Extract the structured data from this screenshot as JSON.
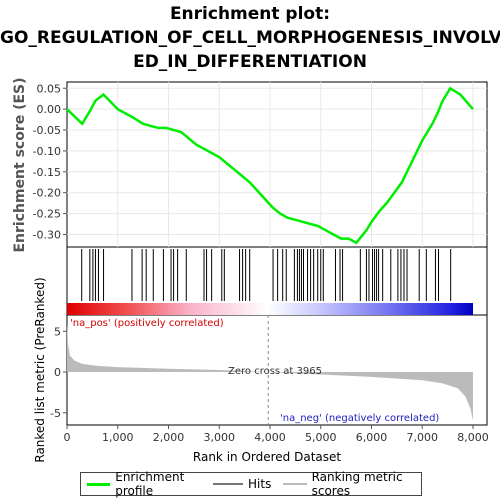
{
  "title_lines": [
    "Enrichment plot:",
    "GO_REGULATION_OF_CELL_MORPHOGENESIS_INVOLV",
    "ED_IN_DIFFERENTIATION"
  ],
  "colors": {
    "enrichment": "#00ee00",
    "hits": "#777777",
    "ranking": "#bbbbbb",
    "pos_label": "#d60000",
    "neg_label": "#2020c0"
  },
  "legend": [
    {
      "label": "Enrichment profile",
      "color": "#00ee00",
      "icon": "line-swatch"
    },
    {
      "label": "Hits",
      "color": "#777777",
      "icon": "line-swatch"
    },
    {
      "label": "Ranking metric scores",
      "color": "#bbbbbb",
      "icon": "line-swatch"
    }
  ],
  "chart_data": [
    {
      "type": "line",
      "ylabel": "Enrichment score (ES)",
      "xlim": [
        0,
        8000
      ],
      "ylim": [
        -0.33,
        0.065
      ],
      "yticks": [
        "0.05",
        "0.00",
        "-0.05",
        "-0.10",
        "-0.15",
        "-0.20",
        "-0.25",
        "-0.30"
      ],
      "ytick_values": [
        0.05,
        0.0,
        -0.05,
        -0.1,
        -0.15,
        -0.2,
        -0.25,
        -0.3
      ],
      "grid": true,
      "series": [
        {
          "x": [
            0,
            300,
            450,
            560,
            720,
            1000,
            1300,
            1500,
            1650,
            1800,
            1950,
            2100,
            2250,
            2400,
            2550,
            2700,
            2850,
            3000,
            3150,
            3300,
            3450,
            3600,
            3750,
            3900,
            4050,
            4200,
            4350,
            4500,
            4650,
            4800,
            4950,
            5100,
            5250,
            5400,
            5550,
            5700,
            5800,
            5900,
            6000,
            6150,
            6300,
            6450,
            6600,
            6700,
            6800,
            6900,
            7000,
            7100,
            7200,
            7300,
            7400,
            7550,
            7750,
            8000
          ],
          "y": [
            0.0,
            -0.035,
            -0.005,
            0.02,
            0.035,
            0.0,
            -0.02,
            -0.035,
            -0.04,
            -0.045,
            -0.045,
            -0.05,
            -0.055,
            -0.07,
            -0.085,
            -0.095,
            -0.105,
            -0.115,
            -0.13,
            -0.145,
            -0.16,
            -0.175,
            -0.195,
            -0.215,
            -0.235,
            -0.25,
            -0.26,
            -0.265,
            -0.27,
            -0.275,
            -0.28,
            -0.29,
            -0.3,
            -0.31,
            -0.31,
            -0.32,
            -0.305,
            -0.29,
            -0.27,
            -0.245,
            -0.225,
            -0.2,
            -0.175,
            -0.15,
            -0.125,
            -0.1,
            -0.075,
            -0.055,
            -0.035,
            -0.01,
            0.02,
            0.05,
            0.035,
            0.0
          ]
        }
      ]
    },
    {
      "type": "bar",
      "name": "hits",
      "x": [
        290,
        450,
        510,
        560,
        620,
        720,
        1280,
        1480,
        1560,
        1700,
        1900,
        2050,
        2100,
        2180,
        2350,
        2700,
        2750,
        2850,
        3050,
        3100,
        3400,
        3460,
        3520,
        3600,
        4060,
        4150,
        4250,
        4320,
        4480,
        4540,
        4580,
        4620,
        4660,
        4740,
        4800,
        4860,
        4940,
        5000,
        5050,
        5290,
        5380,
        5430,
        5780,
        5900,
        5950,
        6020,
        6060,
        6100,
        6140,
        6220,
        6380,
        6520,
        6580,
        6640,
        6700,
        6940,
        7080,
        7260,
        7320,
        7560
      ]
    },
    {
      "type": "area",
      "ylabel": "Ranked list metric (PreRanked)",
      "xlabel": "Rank in Ordered Dataset",
      "xlim": [
        0,
        8000
      ],
      "ylim": [
        -6.5,
        7
      ],
      "yticks": [
        "5",
        "0",
        "-5"
      ],
      "ytick_values": [
        5,
        0,
        -5
      ],
      "xticks": [
        "0",
        "1,000",
        "2,000",
        "3,000",
        "4,000",
        "5,000",
        "6,000",
        "7,000",
        "8,000"
      ],
      "xtick_values": [
        0,
        1000,
        2000,
        3000,
        4000,
        5000,
        6000,
        7000,
        8000
      ],
      "x": [
        0,
        20,
        60,
        150,
        300,
        600,
        1000,
        2000,
        3000,
        3965,
        5000,
        6000,
        7000,
        7400,
        7700,
        7850,
        7950,
        8000
      ],
      "values": [
        6.0,
        3.5,
        2.0,
        1.4,
        1.0,
        0.75,
        0.6,
        0.4,
        0.25,
        0.0,
        -0.3,
        -0.6,
        -1.0,
        -1.4,
        -2.0,
        -3.0,
        -4.5,
        -6.0
      ],
      "annotations": {
        "pos_label": "'na_pos' (positively correlated)",
        "neg_label": "'na_neg' (negatively correlated)",
        "zero_cross": "Zero cross at 3965"
      }
    }
  ]
}
